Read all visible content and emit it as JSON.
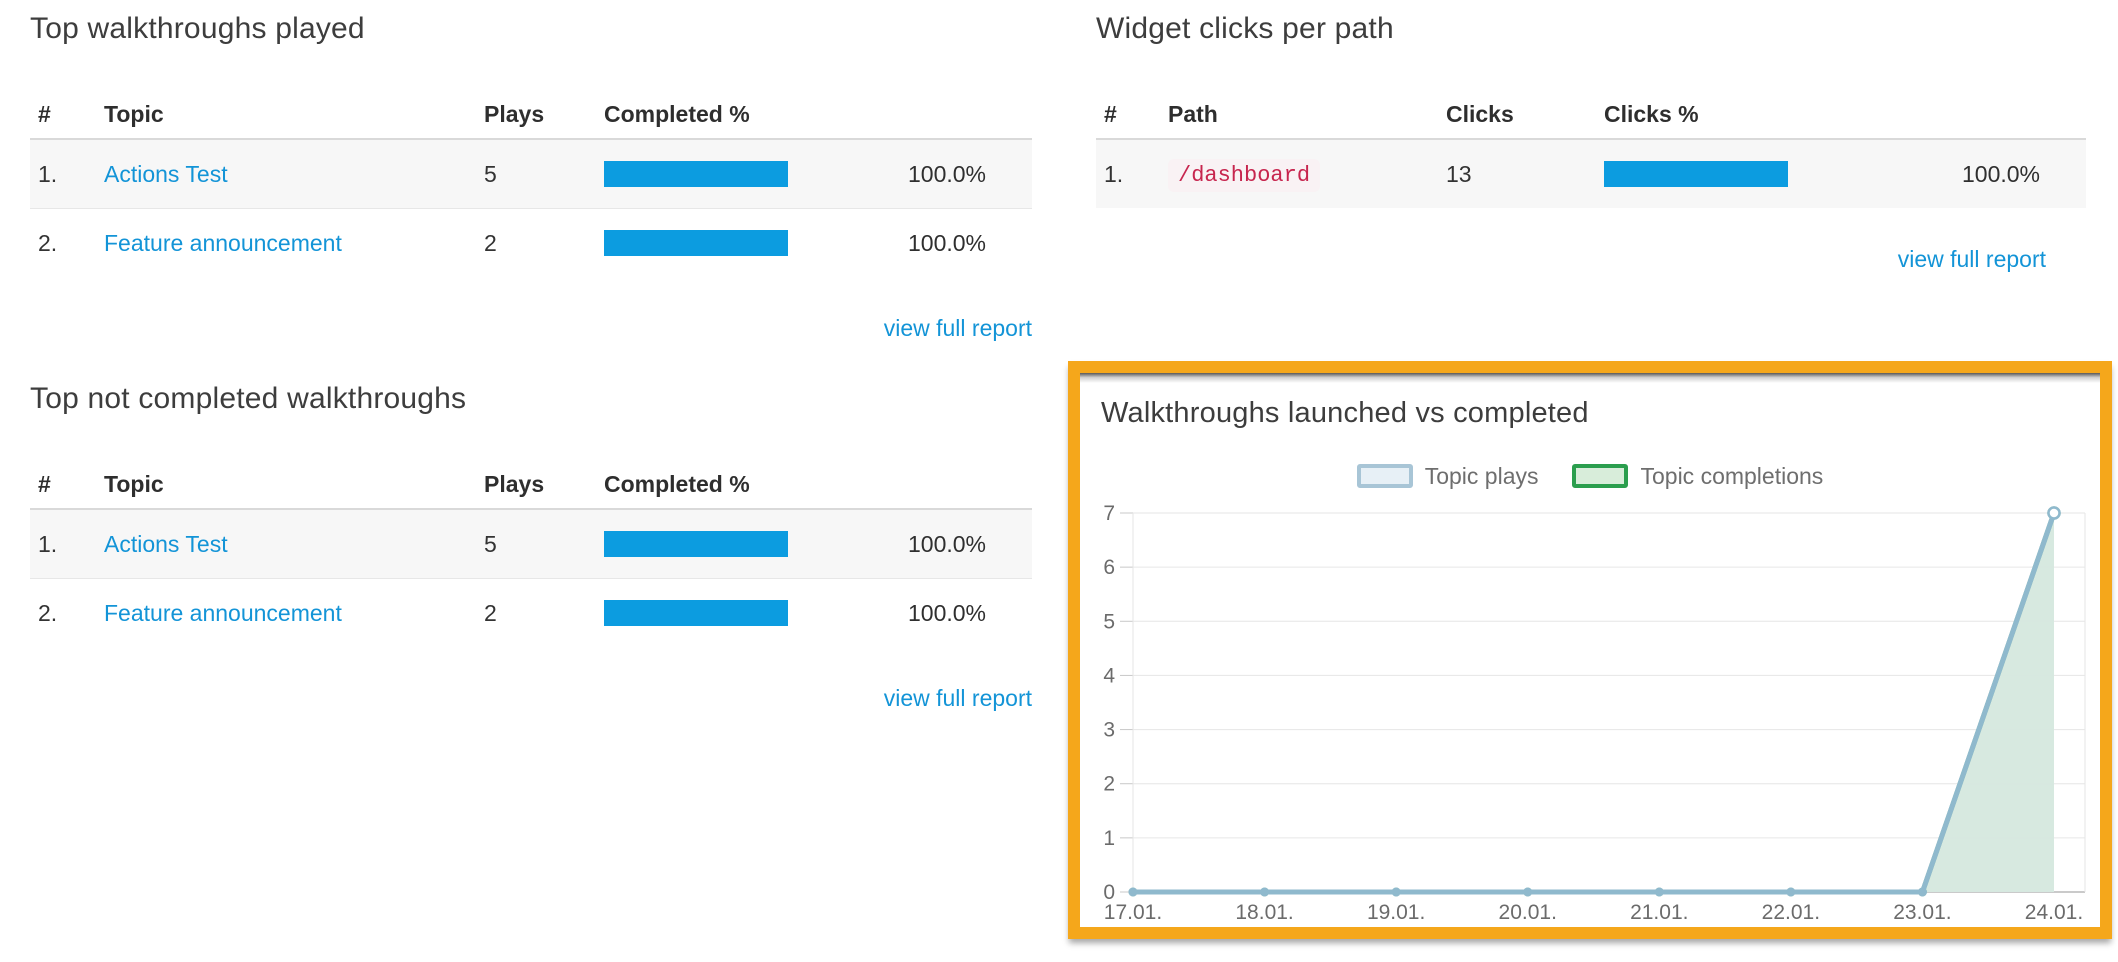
{
  "colors": {
    "bar": "#0C9CE0",
    "link": "#1394D7",
    "code_fg": "#C7254E",
    "code_bg": "#F9F2F4",
    "annotation_border": "#F5A71B",
    "grid": "#E6E6E6",
    "axis_line": "#B8B8B8",
    "tick": "#C8C8C8"
  },
  "panels": {
    "top_played": {
      "title": "Top walkthroughs played",
      "columns": [
        "#",
        "Topic",
        "Plays",
        "Completed %"
      ],
      "name_style": "link",
      "rows": [
        {
          "rank": "1.",
          "name": "Actions Test",
          "count": "5",
          "pct": "100.0%",
          "bar_pct": 100
        },
        {
          "rank": "2.",
          "name": "Feature announcement",
          "count": "2",
          "pct": "100.0%",
          "bar_pct": 100
        }
      ],
      "link": "view full report"
    },
    "widget_clicks": {
      "title": "Widget clicks per path",
      "columns": [
        "#",
        "Path",
        "Clicks",
        "Clicks %"
      ],
      "name_style": "code",
      "rows": [
        {
          "rank": "1.",
          "name": "/dashboard",
          "count": "13",
          "pct": "100.0%",
          "bar_pct": 100
        }
      ],
      "link": "view full report"
    },
    "top_not_completed": {
      "title": "Top not completed walkthroughs",
      "columns": [
        "#",
        "Topic",
        "Plays",
        "Completed %"
      ],
      "name_style": "link",
      "rows": [
        {
          "rank": "1.",
          "name": "Actions Test",
          "count": "5",
          "pct": "100.0%",
          "bar_pct": 100
        },
        {
          "rank": "2.",
          "name": "Feature announcement",
          "count": "2",
          "pct": "100.0%",
          "bar_pct": 100
        }
      ],
      "link": "view full report"
    }
  },
  "chart_data": {
    "type": "area",
    "title": "Walkthroughs launched vs completed",
    "x": [
      "17.01.",
      "18.01.",
      "19.01.",
      "20.01.",
      "21.01.",
      "22.01.",
      "23.01.",
      "24.01."
    ],
    "series": [
      {
        "name": "Topic plays",
        "values": [
          0,
          0,
          0,
          0,
          0,
          0,
          0,
          7
        ],
        "line_color": "#8FB9CD",
        "fill_color": "rgba(222,235,243,0.8)",
        "legend_fill": "#E7F0F6",
        "legend_border": "#A8C5D6"
      },
      {
        "name": "Topic completions",
        "values": [
          0,
          0,
          0,
          0,
          0,
          0,
          0,
          7
        ],
        "line_color": "#7FB8A2",
        "fill_color": "rgba(214,232,222,0.95)",
        "legend_fill": "#D8EDDA",
        "legend_border": "#2B9E4E"
      }
    ],
    "ylim": [
      0,
      7
    ],
    "yticks": [
      0,
      1,
      2,
      3,
      4,
      5,
      6,
      7
    ],
    "xlabel": "",
    "ylabel": "",
    "grid": true,
    "legend_position": "top-center"
  }
}
